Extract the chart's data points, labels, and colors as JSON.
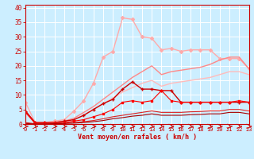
{
  "xlabel": "Vent moyen/en rafales ( km/h )",
  "bg_color": "#cceeff",
  "grid_color": "#ffffff",
  "ylim": [
    0,
    41
  ],
  "xlim": [
    0,
    23
  ],
  "yticks": [
    0,
    5,
    10,
    15,
    20,
    25,
    30,
    35,
    40
  ],
  "xticks": [
    0,
    1,
    2,
    3,
    4,
    5,
    6,
    7,
    8,
    9,
    10,
    11,
    12,
    13,
    14,
    15,
    16,
    17,
    18,
    19,
    20,
    21,
    22,
    23
  ],
  "lines": [
    {
      "x": [
        0,
        1,
        2,
        3,
        4,
        5,
        6,
        7,
        8,
        9,
        10,
        11,
        12,
        13,
        14,
        15,
        16,
        17,
        18,
        19,
        20,
        21,
        22,
        23
      ],
      "y": [
        7.5,
        0.5,
        0.5,
        1.0,
        1.5,
        4.5,
        8.0,
        14.0,
        23.0,
        25.0,
        36.5,
        36.0,
        30.0,
        29.5,
        25.5,
        26.0,
        25.0,
        25.5,
        25.5,
        25.5,
        22.5,
        22.5,
        22.5,
        19.0
      ],
      "color": "#ffaaaa",
      "marker": "D",
      "markersize": 2.0,
      "linewidth": 1.0
    },
    {
      "x": [
        0,
        1,
        2,
        3,
        4,
        5,
        6,
        7,
        8,
        9,
        10,
        11,
        12,
        13,
        14,
        15,
        16,
        17,
        18,
        19,
        20,
        21,
        22,
        23
      ],
      "y": [
        4.5,
        0.5,
        0.5,
        0.5,
        1.0,
        2.0,
        4.0,
        6.0,
        8.5,
        11.0,
        13.5,
        16.0,
        18.0,
        20.0,
        17.0,
        18.0,
        18.5,
        19.0,
        19.5,
        20.5,
        22.0,
        23.0,
        23.0,
        19.0
      ],
      "color": "#ff8888",
      "marker": null,
      "linewidth": 1.0
    },
    {
      "x": [
        0,
        1,
        2,
        3,
        4,
        5,
        6,
        7,
        8,
        9,
        10,
        11,
        12,
        13,
        14,
        15,
        16,
        17,
        18,
        19,
        20,
        21,
        22,
        23
      ],
      "y": [
        4.0,
        0.5,
        0.5,
        0.5,
        1.0,
        1.5,
        3.0,
        5.0,
        7.0,
        9.0,
        11.0,
        12.5,
        14.0,
        15.0,
        13.0,
        14.0,
        14.5,
        15.0,
        15.5,
        16.0,
        17.0,
        18.0,
        18.0,
        17.0
      ],
      "color": "#ffbbbb",
      "marker": null,
      "linewidth": 1.0
    },
    {
      "x": [
        0,
        1,
        2,
        3,
        4,
        5,
        6,
        7,
        8,
        9,
        10,
        11,
        12,
        13,
        14,
        15,
        16,
        17,
        18,
        19,
        20,
        21,
        22,
        23
      ],
      "y": [
        4.5,
        0.5,
        0.5,
        0.5,
        1.0,
        1.5,
        3.0,
        5.0,
        7.0,
        8.5,
        12.0,
        14.5,
        12.0,
        12.0,
        11.5,
        11.5,
        7.5,
        7.5,
        7.5,
        7.5,
        7.5,
        7.5,
        7.5,
        7.5
      ],
      "color": "#cc0000",
      "marker": "+",
      "markersize": 3.5,
      "linewidth": 1.0
    },
    {
      "x": [
        0,
        1,
        2,
        3,
        4,
        5,
        6,
        7,
        8,
        9,
        10,
        11,
        12,
        13,
        14,
        15,
        16,
        17,
        18,
        19,
        20,
        21,
        22,
        23
      ],
      "y": [
        4.0,
        0.2,
        0.2,
        0.2,
        0.5,
        1.0,
        1.5,
        2.5,
        3.5,
        5.0,
        7.5,
        8.0,
        7.5,
        8.0,
        11.5,
        8.0,
        7.5,
        7.5,
        7.5,
        7.5,
        7.5,
        7.5,
        8.0,
        7.5
      ],
      "color": "#ff0000",
      "marker": "s",
      "markersize": 1.8,
      "linewidth": 0.8
    },
    {
      "x": [
        0,
        1,
        2,
        3,
        4,
        5,
        6,
        7,
        8,
        9,
        10,
        11,
        12,
        13,
        14,
        15,
        16,
        17,
        18,
        19,
        20,
        21,
        22,
        23
      ],
      "y": [
        0.5,
        0.1,
        0.1,
        0.2,
        0.3,
        0.5,
        0.8,
        1.2,
        1.8,
        2.5,
        3.0,
        3.5,
        4.0,
        4.5,
        4.0,
        4.0,
        4.0,
        4.2,
        4.3,
        4.5,
        4.5,
        5.0,
        5.0,
        4.5
      ],
      "color": "#dd2222",
      "marker": null,
      "linewidth": 0.8
    },
    {
      "x": [
        0,
        1,
        2,
        3,
        4,
        5,
        6,
        7,
        8,
        9,
        10,
        11,
        12,
        13,
        14,
        15,
        16,
        17,
        18,
        19,
        20,
        21,
        22,
        23
      ],
      "y": [
        0.2,
        0.0,
        0.0,
        0.1,
        0.2,
        0.3,
        0.5,
        0.8,
        1.2,
        1.8,
        2.2,
        2.7,
        3.0,
        3.5,
        3.0,
        3.0,
        3.0,
        3.2,
        3.3,
        3.5,
        3.5,
        4.0,
        4.0,
        3.5
      ],
      "color": "#aa0000",
      "marker": null,
      "linewidth": 0.8
    }
  ]
}
